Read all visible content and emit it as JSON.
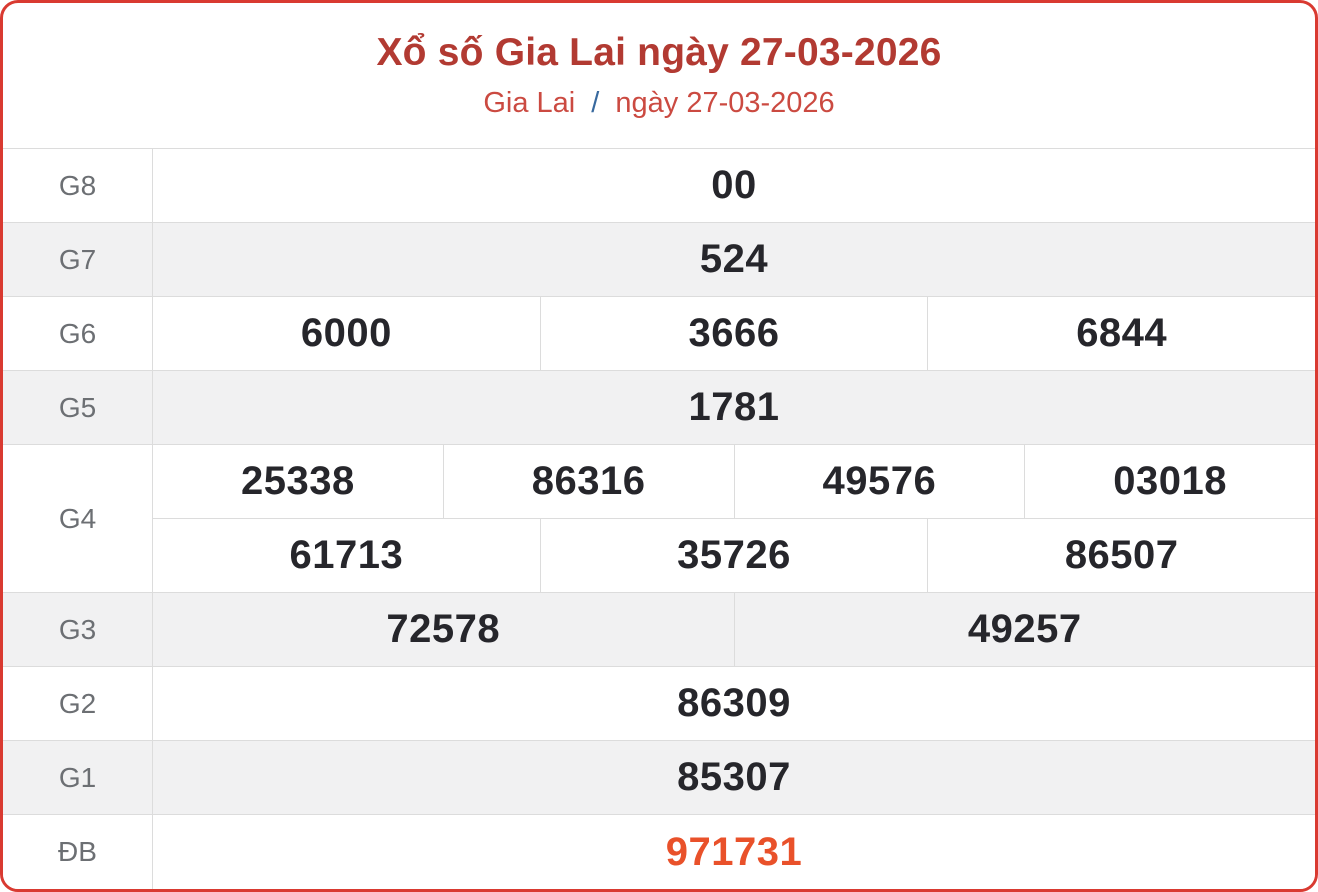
{
  "header": {
    "title": "Xổ số Gia Lai ngày 27-03-2026",
    "region": "Gia Lai",
    "separator": "/",
    "date": "ngày 27-03-2026"
  },
  "colors": {
    "card_border_red": "#d93a31",
    "title_red": "#b23a32",
    "subtitle_red": "#cb4a41",
    "separator_blue": "#38699e",
    "shaded_row_bg": "#f1f1f2",
    "grid_line": "#dcdcdc",
    "label_gray": "#6c6f73",
    "value_dark": "#26262b",
    "special_prize_orange": "#e9512a"
  },
  "results": {
    "rows": [
      {
        "label": "G8",
        "groups": [
          [
            "00"
          ]
        ]
      },
      {
        "label": "G7",
        "groups": [
          [
            "524"
          ]
        ]
      },
      {
        "label": "G6",
        "groups": [
          [
            "6000",
            "3666",
            "6844"
          ]
        ]
      },
      {
        "label": "G5",
        "groups": [
          [
            "1781"
          ]
        ]
      },
      {
        "label": "G4",
        "groups": [
          [
            "25338",
            "86316",
            "49576",
            "03018"
          ],
          [
            "61713",
            "35726",
            "86507"
          ]
        ]
      },
      {
        "label": "G3",
        "groups": [
          [
            "72578",
            "49257"
          ]
        ]
      },
      {
        "label": "G2",
        "groups": [
          [
            "86309"
          ]
        ]
      },
      {
        "label": "G1",
        "groups": [
          [
            "85307"
          ]
        ]
      },
      {
        "label": "ĐB",
        "groups": [
          [
            "971731"
          ]
        ]
      }
    ]
  }
}
